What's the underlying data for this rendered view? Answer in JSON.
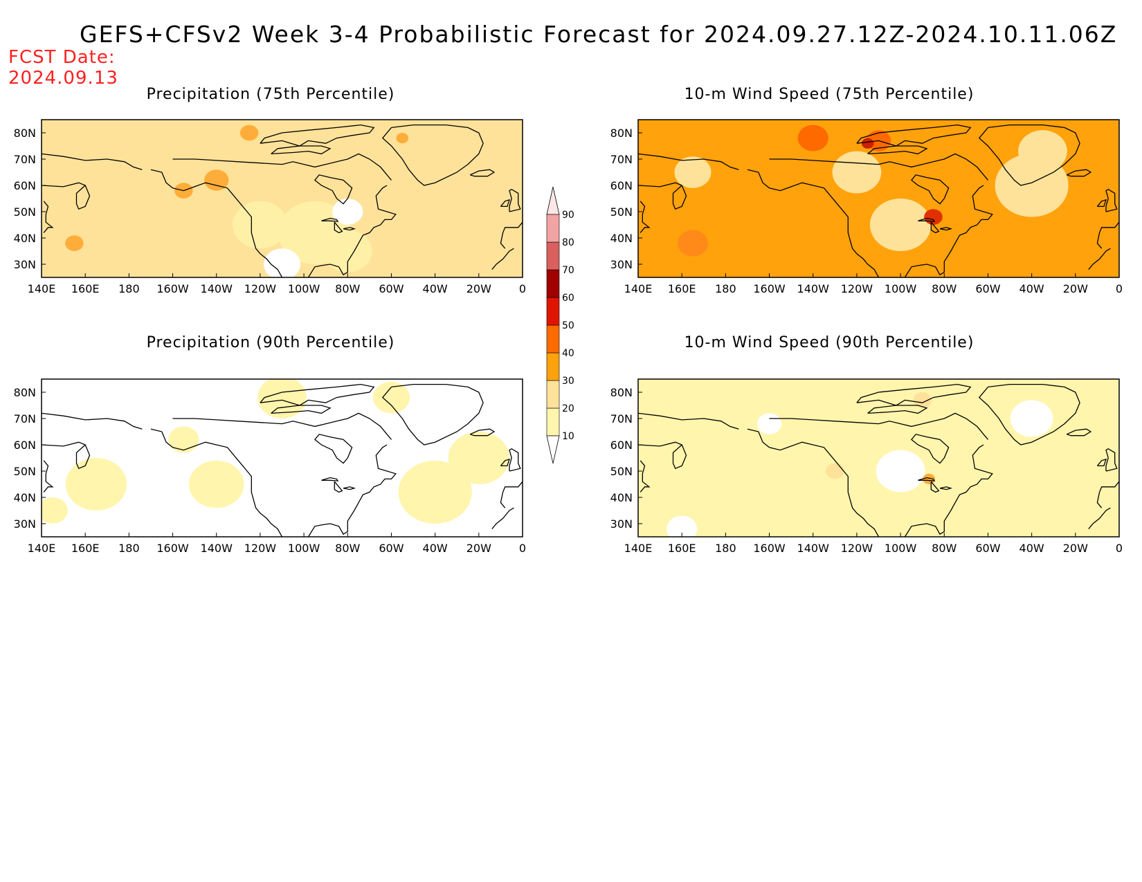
{
  "header": {
    "title": "GEFS+CFSv2 Week 3-4 Probabilistic Forecast for 2024.09.27.12Z-2024.10.11.06Z",
    "fcst_label": "FCST Date:",
    "fcst_date": "2024.09.13"
  },
  "panels": [
    {
      "id": "precip-75",
      "title": "Precipitation (75th Percentile)",
      "base": "#fee29a",
      "blobs": [
        {
          "lon": -120,
          "lat": 45,
          "r": 9,
          "c": "#fff0a8"
        },
        {
          "lon": -95,
          "lat": 42,
          "r": 12,
          "c": "#fff0a8"
        },
        {
          "lon": -80,
          "lat": 35,
          "r": 8,
          "c": "#fff0a8"
        },
        {
          "lon": -110,
          "lat": 30,
          "r": 6,
          "c": "#ffffff"
        },
        {
          "lon": -125,
          "lat": 80,
          "r": 3,
          "c": "#ffad3a"
        },
        {
          "lon": -80,
          "lat": 50,
          "r": 5,
          "c": "#ffffff"
        },
        {
          "lon": 155,
          "lat": 38,
          "r": 3,
          "c": "#ffad3a"
        },
        {
          "lon": -55,
          "lat": 78,
          "r": 2,
          "c": "#ffad3a"
        },
        {
          "lon": -155,
          "lat": 58,
          "r": 3,
          "c": "#ffad3a"
        },
        {
          "lon": -140,
          "lat": 62,
          "r": 4,
          "c": "#ffad3a"
        }
      ]
    },
    {
      "id": "wind-75",
      "title": "10-m Wind Speed (75th Percentile)",
      "base": "#ffa20c",
      "blobs": [
        {
          "lon": -100,
          "lat": 45,
          "r": 10,
          "c": "#fee29a"
        },
        {
          "lon": -120,
          "lat": 65,
          "r": 8,
          "c": "#fee29a"
        },
        {
          "lon": -40,
          "lat": 60,
          "r": 12,
          "c": "#fee29a"
        },
        {
          "lon": -35,
          "lat": 73,
          "r": 8,
          "c": "#fee29a"
        },
        {
          "lon": 165,
          "lat": 65,
          "r": 6,
          "c": "#fee29a"
        },
        {
          "lon": -110,
          "lat": 77,
          "r": 4,
          "c": "#ff6a00"
        },
        {
          "lon": -140,
          "lat": 78,
          "r": 5,
          "c": "#ff6a00"
        },
        {
          "lon": -85,
          "lat": 48,
          "r": 3,
          "c": "#e03000"
        },
        {
          "lon": -115,
          "lat": 76,
          "r": 2,
          "c": "#cc2000"
        },
        {
          "lon": 165,
          "lat": 38,
          "r": 5,
          "c": "#ff8a1a"
        }
      ]
    },
    {
      "id": "precip-90",
      "title": "Precipitation (90th Percentile)",
      "base": "#ffffff",
      "blobs": [
        {
          "lon": -40,
          "lat": 42,
          "r": 12,
          "c": "#fff5ad"
        },
        {
          "lon": -20,
          "lat": 55,
          "r": 10,
          "c": "#fff5ad"
        },
        {
          "lon": -110,
          "lat": 78,
          "r": 8,
          "c": "#fff5ad"
        },
        {
          "lon": 165,
          "lat": 45,
          "r": 10,
          "c": "#fff5ad"
        },
        {
          "lon": -140,
          "lat": 45,
          "r": 9,
          "c": "#fff5ad"
        },
        {
          "lon": -60,
          "lat": 78,
          "r": 6,
          "c": "#fff5ad"
        },
        {
          "lon": -155,
          "lat": 62,
          "r": 5,
          "c": "#fff5ad"
        },
        {
          "lon": 145,
          "lat": 35,
          "r": 5,
          "c": "#fff5ad"
        }
      ]
    },
    {
      "id": "wind-90",
      "title": "10-m Wind Speed (90th Percentile)",
      "base": "#fff5ad",
      "blobs": [
        {
          "lon": -100,
          "lat": 50,
          "r": 8,
          "c": "#ffffff"
        },
        {
          "lon": -40,
          "lat": 70,
          "r": 7,
          "c": "#ffffff"
        },
        {
          "lon": -160,
          "lat": 68,
          "r": 4,
          "c": "#ffffff"
        },
        {
          "lon": 160,
          "lat": 28,
          "r": 5,
          "c": "#ffffff"
        },
        {
          "lon": -90,
          "lat": 77,
          "r": 3,
          "c": "#fee29a"
        },
        {
          "lon": -87,
          "lat": 47,
          "r": 2,
          "c": "#ffad3a"
        },
        {
          "lon": -130,
          "lat": 50,
          "r": 3,
          "c": "#fee29a"
        }
      ]
    }
  ],
  "axes": {
    "lon_labels": [
      "140E",
      "160E",
      "180",
      "160W",
      "140W",
      "120W",
      "100W",
      "80W",
      "60W",
      "40W",
      "20W",
      "0"
    ],
    "lat_labels": [
      "30N",
      "40N",
      "50N",
      "60N",
      "70N",
      "80N"
    ],
    "lon_range": [
      140,
      360
    ],
    "lat_range": [
      25,
      85
    ]
  },
  "colorbar": {
    "levels": [
      "10",
      "20",
      "30",
      "40",
      "50",
      "60",
      "70",
      "80",
      "90"
    ],
    "colors": [
      "#fff5ad",
      "#fee29a",
      "#ffa20c",
      "#ff6a00",
      "#e01500",
      "#a00000",
      "#d9605f",
      "#f2a3a3",
      "#fde6e6"
    ]
  }
}
